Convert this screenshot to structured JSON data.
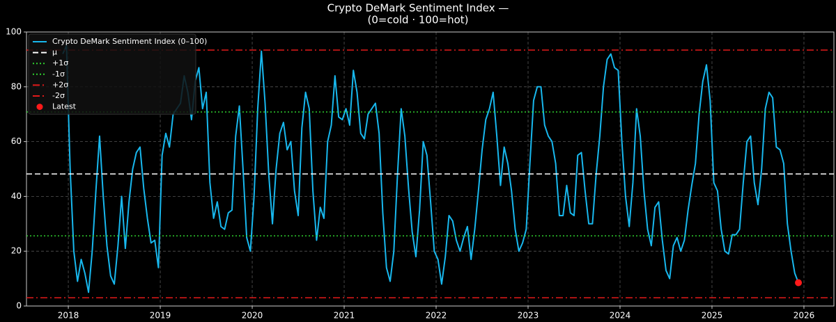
{
  "chart_data": {
    "type": "line",
    "title": "Crypto DeMark Sentiment Index —",
    "subtitle": "(0=cold · 100=hot)",
    "xlim": [
      2017.545,
      2026.326
    ],
    "xticks": [
      2018,
      2019,
      2020,
      2021,
      2022,
      2023,
      2024,
      2025,
      2026
    ],
    "ylim": [
      0,
      100
    ],
    "yticks": [
      0,
      20,
      40,
      60,
      80,
      100
    ],
    "grid": true,
    "legend": "upper left",
    "series": [
      {
        "name": "Crypto DeMark Sentiment Index (0–100)",
        "color": "#18b8ee",
        "x": [
          2017.94,
          2017.98,
          2018.02,
          2018.06,
          2018.1,
          2018.14,
          2018.18,
          2018.22,
          2018.26,
          2018.3,
          2018.34,
          2018.38,
          2018.42,
          2018.46,
          2018.5,
          2018.54,
          2018.58,
          2018.62,
          2018.66,
          2018.7,
          2018.74,
          2018.78,
          2018.82,
          2018.86,
          2018.9,
          2018.94,
          2018.98,
          2019.02,
          2019.06,
          2019.1,
          2019.14,
          2019.18,
          2019.22,
          2019.26,
          2019.3,
          2019.34,
          2019.38,
          2019.42,
          2019.46,
          2019.5,
          2019.54,
          2019.58,
          2019.62,
          2019.66,
          2019.7,
          2019.74,
          2019.78,
          2019.82,
          2019.86,
          2019.9,
          2019.94,
          2019.98,
          2020.02,
          2020.06,
          2020.1,
          2020.14,
          2020.18,
          2020.22,
          2020.26,
          2020.3,
          2020.34,
          2020.38,
          2020.42,
          2020.46,
          2020.5,
          2020.54,
          2020.58,
          2020.62,
          2020.66,
          2020.7,
          2020.74,
          2020.78,
          2020.82,
          2020.86,
          2020.9,
          2020.94,
          2020.98,
          2021.02,
          2021.06,
          2021.1,
          2021.14,
          2021.18,
          2021.22,
          2021.26,
          2021.3,
          2021.34,
          2021.38,
          2021.42,
          2021.46,
          2021.5,
          2021.54,
          2021.58,
          2021.62,
          2021.66,
          2021.7,
          2021.74,
          2021.78,
          2021.82,
          2021.86,
          2021.9,
          2021.94,
          2021.98,
          2022.02,
          2022.06,
          2022.1,
          2022.14,
          2022.18,
          2022.22,
          2022.26,
          2022.3,
          2022.34,
          2022.38,
          2022.42,
          2022.46,
          2022.5,
          2022.54,
          2022.58,
          2022.62,
          2022.66,
          2022.7,
          2022.74,
          2022.78,
          2022.82,
          2022.86,
          2022.9,
          2022.94,
          2022.98,
          2023.02,
          2023.06,
          2023.1,
          2023.14,
          2023.18,
          2023.22,
          2023.26,
          2023.3,
          2023.34,
          2023.38,
          2023.42,
          2023.46,
          2023.5,
          2023.54,
          2023.58,
          2023.62,
          2023.66,
          2023.7,
          2023.74,
          2023.78,
          2023.82,
          2023.86,
          2023.9,
          2023.94,
          2023.98,
          2024.02,
          2024.06,
          2024.1,
          2024.14,
          2024.18,
          2024.22,
          2024.26,
          2024.3,
          2024.34,
          2024.38,
          2024.42,
          2024.46,
          2024.5,
          2024.54,
          2024.58,
          2024.62,
          2024.66,
          2024.7,
          2024.74,
          2024.78,
          2024.82,
          2024.86,
          2024.9,
          2024.94,
          2024.98,
          2025.02,
          2025.06,
          2025.1,
          2025.14,
          2025.18,
          2025.22,
          2025.26,
          2025.3,
          2025.34,
          2025.38,
          2025.42,
          2025.46,
          2025.5,
          2025.54,
          2025.58,
          2025.62,
          2025.66,
          2025.7,
          2025.74,
          2025.78,
          2025.82,
          2025.86,
          2025.9,
          2025.94
        ],
        "values": [
          92,
          95,
          50,
          20,
          9,
          17,
          12,
          5,
          20,
          42,
          62,
          40,
          22,
          11,
          8,
          22,
          40,
          21,
          38,
          50,
          56,
          58,
          43,
          32,
          23,
          24,
          14,
          55,
          63,
          58,
          70,
          72,
          74,
          84,
          78,
          68,
          82,
          87,
          72,
          78,
          45,
          32,
          38,
          29,
          28,
          34,
          35,
          62,
          73,
          50,
          25,
          20,
          40,
          72,
          93,
          74,
          48,
          30,
          50,
          63,
          67,
          57,
          60,
          42,
          33,
          65,
          78,
          72,
          42,
          24,
          36,
          32,
          60,
          66,
          84,
          69,
          68,
          72,
          66,
          86,
          78,
          63,
          61,
          70,
          72,
          74,
          63,
          34,
          14,
          9,
          20,
          48,
          72,
          62,
          43,
          27,
          18,
          35,
          60,
          55,
          38,
          20,
          17,
          8,
          18,
          33,
          31,
          24,
          20,
          25,
          29,
          17,
          28,
          42,
          57,
          68,
          72,
          78,
          62,
          44,
          58,
          52,
          42,
          28,
          20,
          23,
          28,
          52,
          75,
          80,
          80,
          66,
          62,
          60,
          52,
          33,
          33,
          44,
          34,
          33,
          55,
          56,
          42,
          30,
          30,
          48,
          62,
          80,
          90,
          92,
          87,
          86,
          60,
          40,
          29,
          45,
          72,
          62,
          42,
          28,
          22,
          36,
          38,
          24,
          13,
          10,
          22,
          25,
          20,
          24,
          35,
          44,
          52,
          70,
          82,
          88,
          75,
          45,
          42,
          28,
          20,
          19,
          26,
          26,
          28,
          45,
          60,
          62,
          45,
          37,
          50,
          72,
          78,
          76,
          58,
          57,
          52,
          30,
          20,
          12,
          8.5
        ]
      }
    ],
    "reference_lines": [
      {
        "name": "μ",
        "value": 48.2,
        "color": "#ffffff",
        "style": "dashed"
      },
      {
        "name": "+1σ",
        "value": 70.8,
        "color": "#2fd12f",
        "style": "dotted"
      },
      {
        "name": "-1σ",
        "value": 25.6,
        "color": "#2fd12f",
        "style": "dotted"
      },
      {
        "name": "+2σ",
        "value": 93.4,
        "color": "#e31a1a",
        "style": "dashdot"
      },
      {
        "name": "-2σ",
        "value": 3.0,
        "color": "#e31a1a",
        "style": "dashdot"
      }
    ],
    "latest": {
      "name": "Latest",
      "x": 2025.94,
      "value": 8.5,
      "color": "#ff1a1a"
    }
  }
}
